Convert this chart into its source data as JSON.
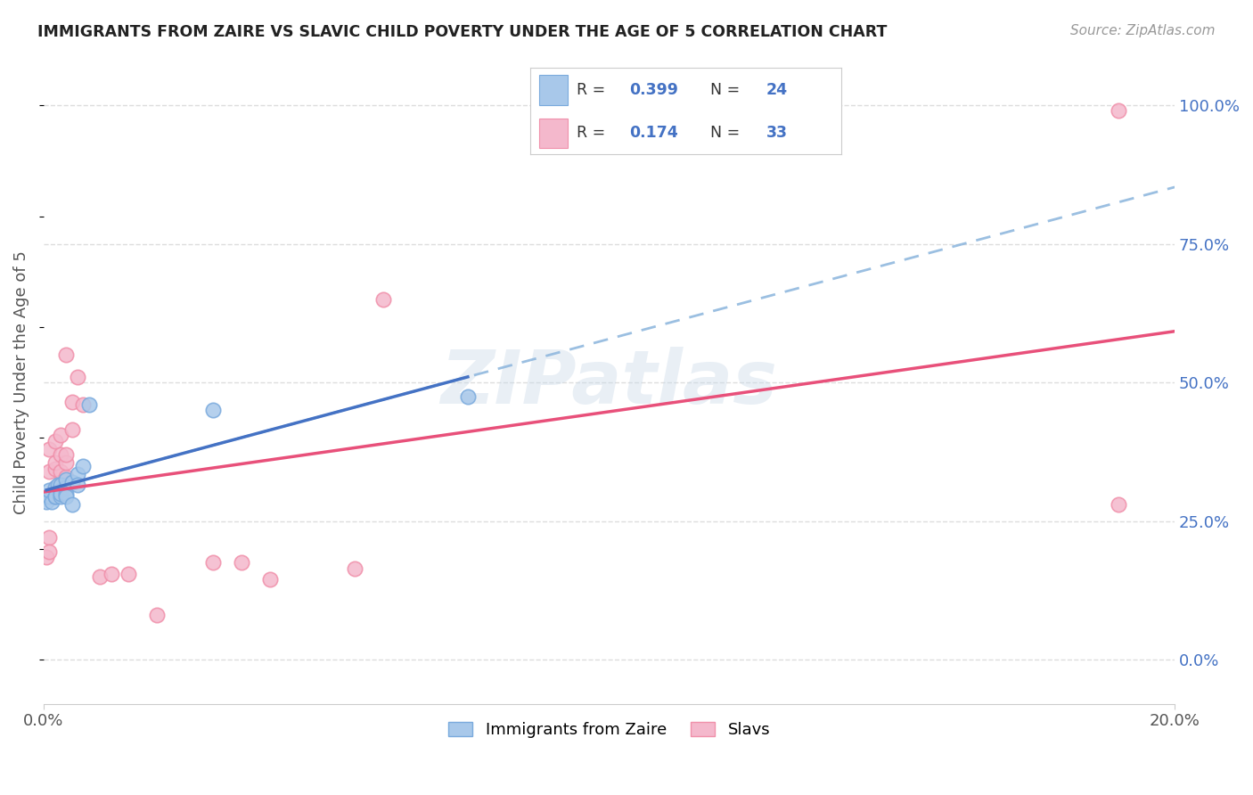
{
  "title": "IMMIGRANTS FROM ZAIRE VS SLAVIC CHILD POVERTY UNDER THE AGE OF 5 CORRELATION CHART",
  "source": "Source: ZipAtlas.com",
  "ylabel": "Child Poverty Under the Age of 5",
  "ytick_labels": [
    "0.0%",
    "25.0%",
    "50.0%",
    "75.0%",
    "100.0%"
  ],
  "ytick_vals": [
    0.0,
    0.25,
    0.5,
    0.75,
    1.0
  ],
  "xmin": 0.0,
  "xmax": 0.2,
  "ymin": -0.08,
  "ymax": 1.08,
  "watermark": "ZIPatlas",
  "legend_R_blue": "0.399",
  "legend_N_blue": "24",
  "legend_R_pink": "0.174",
  "legend_N_pink": "33",
  "zaire_x": [
    0.0005,
    0.001,
    0.001,
    0.0015,
    0.002,
    0.002,
    0.002,
    0.0025,
    0.003,
    0.003,
    0.003,
    0.003,
    0.004,
    0.004,
    0.004,
    0.004,
    0.005,
    0.005,
    0.006,
    0.006,
    0.007,
    0.008,
    0.03,
    0.075
  ],
  "zaire_y": [
    0.285,
    0.295,
    0.305,
    0.285,
    0.295,
    0.31,
    0.295,
    0.315,
    0.305,
    0.295,
    0.315,
    0.3,
    0.31,
    0.3,
    0.295,
    0.325,
    0.32,
    0.28,
    0.335,
    0.315,
    0.35,
    0.46,
    0.45,
    0.475
  ],
  "slavic_x": [
    0.0005,
    0.001,
    0.001,
    0.001,
    0.001,
    0.0015,
    0.002,
    0.002,
    0.002,
    0.002,
    0.003,
    0.003,
    0.003,
    0.003,
    0.004,
    0.004,
    0.004,
    0.004,
    0.005,
    0.005,
    0.006,
    0.007,
    0.01,
    0.012,
    0.015,
    0.02,
    0.03,
    0.035,
    0.04,
    0.055,
    0.06,
    0.19,
    0.19
  ],
  "slavic_y": [
    0.185,
    0.22,
    0.195,
    0.34,
    0.38,
    0.295,
    0.31,
    0.345,
    0.355,
    0.395,
    0.32,
    0.34,
    0.37,
    0.405,
    0.33,
    0.355,
    0.37,
    0.55,
    0.415,
    0.465,
    0.51,
    0.46,
    0.15,
    0.155,
    0.155,
    0.08,
    0.175,
    0.175,
    0.145,
    0.165,
    0.65,
    0.28,
    0.99
  ],
  "zaire_color": "#a8c8ea",
  "slavic_color": "#f4b8cc",
  "zaire_edge_color": "#7aaadd",
  "slavic_edge_color": "#f090aa",
  "zaire_line_color": "#4472c4",
  "slavic_line_color": "#e8507a",
  "zaire_dash_color": "#90b8de",
  "grid_color": "#dddddd",
  "background_color": "#ffffff",
  "legend_box_color": "#f4b8cc",
  "legend_box_blue": "#a8c8ea"
}
